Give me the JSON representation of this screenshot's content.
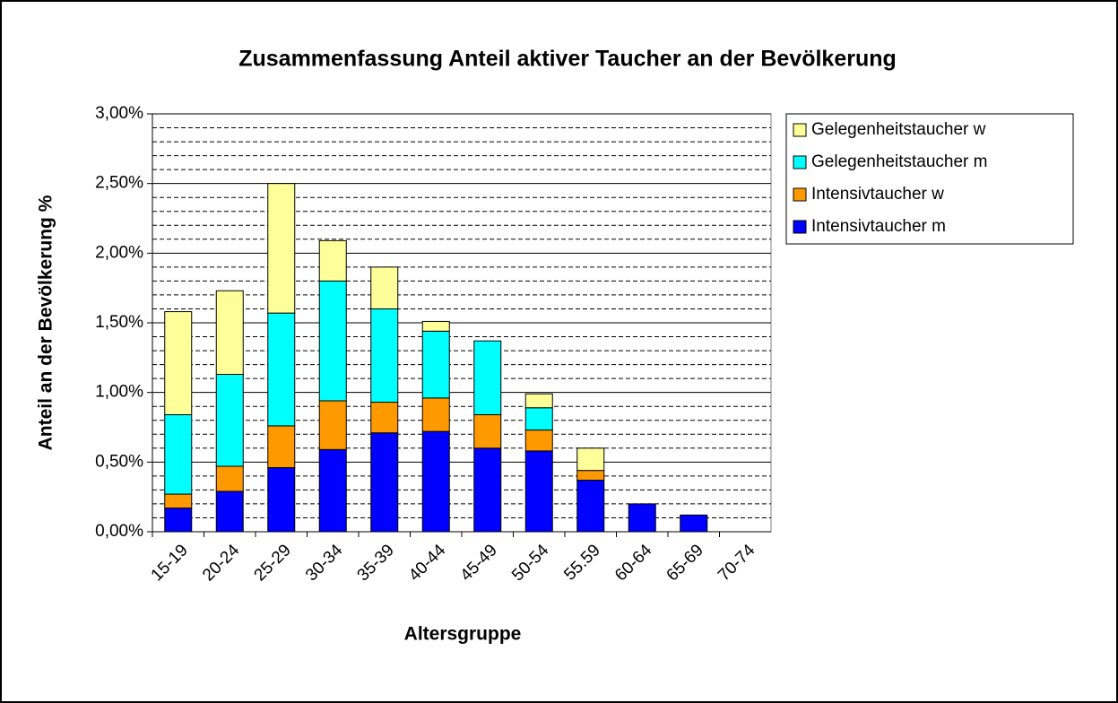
{
  "chart_data": {
    "type": "stacked_bar",
    "title": "Zusammenfassung Anteil aktiver Taucher an der Bevölkerung",
    "x_label": "Altersgruppe",
    "y_label": "Anteil an der Bevölkerung %",
    "categories": [
      "15-19",
      "20-24",
      "25-29",
      "30-34",
      "35-39",
      "40-44",
      "45-49",
      "50-54",
      "55.59",
      "60-64",
      "65-69",
      "70-74"
    ],
    "series": [
      {
        "name": "Intensivtaucher m",
        "color": "#0000ff",
        "values": [
          0.17,
          0.29,
          0.46,
          0.59,
          0.71,
          0.72,
          0.6,
          0.58,
          0.37,
          0.2,
          0.12,
          0
        ]
      },
      {
        "name": "Intensivtaucher w",
        "color": "#ff9900",
        "values": [
          0.1,
          0.18,
          0.3,
          0.35,
          0.22,
          0.24,
          0.24,
          0.15,
          0.07,
          0,
          0,
          0
        ]
      },
      {
        "name": "Gelegenheitstaucher m",
        "color": "#00ffff",
        "values": [
          0.57,
          0.66,
          0.81,
          0.86,
          0.67,
          0.48,
          0.53,
          0.16,
          0,
          0,
          0,
          0
        ]
      },
      {
        "name": "Gelegenheitstaucher w",
        "color": "#ffff99",
        "values": [
          0.74,
          0.6,
          0.93,
          0.29,
          0.3,
          0.07,
          0,
          0.1,
          0.16,
          0,
          0,
          0
        ]
      }
    ],
    "ylim": [
      0,
      3
    ],
    "yticks": [
      {
        "value": 0,
        "label": "0,00%"
      },
      {
        "value": 0.5,
        "label": "0,50%"
      },
      {
        "value": 1,
        "label": "1,00%"
      },
      {
        "value": 1.5,
        "label": "1,50%"
      },
      {
        "value": 2,
        "label": "2,00%"
      },
      {
        "value": 2.5,
        "label": "2,50%"
      },
      {
        "value": 3,
        "label": "3,00%"
      }
    ],
    "minor_yticks": [
      0.1,
      0.2,
      0.3,
      0.4,
      0.6,
      0.7,
      0.8,
      0.9,
      1.1,
      1.2,
      1.3,
      1.4,
      1.6,
      1.7,
      1.8,
      1.9,
      2.1,
      2.2,
      2.3,
      2.4,
      2.6,
      2.7,
      2.8,
      2.9
    ],
    "grid": true,
    "legend": "right"
  }
}
